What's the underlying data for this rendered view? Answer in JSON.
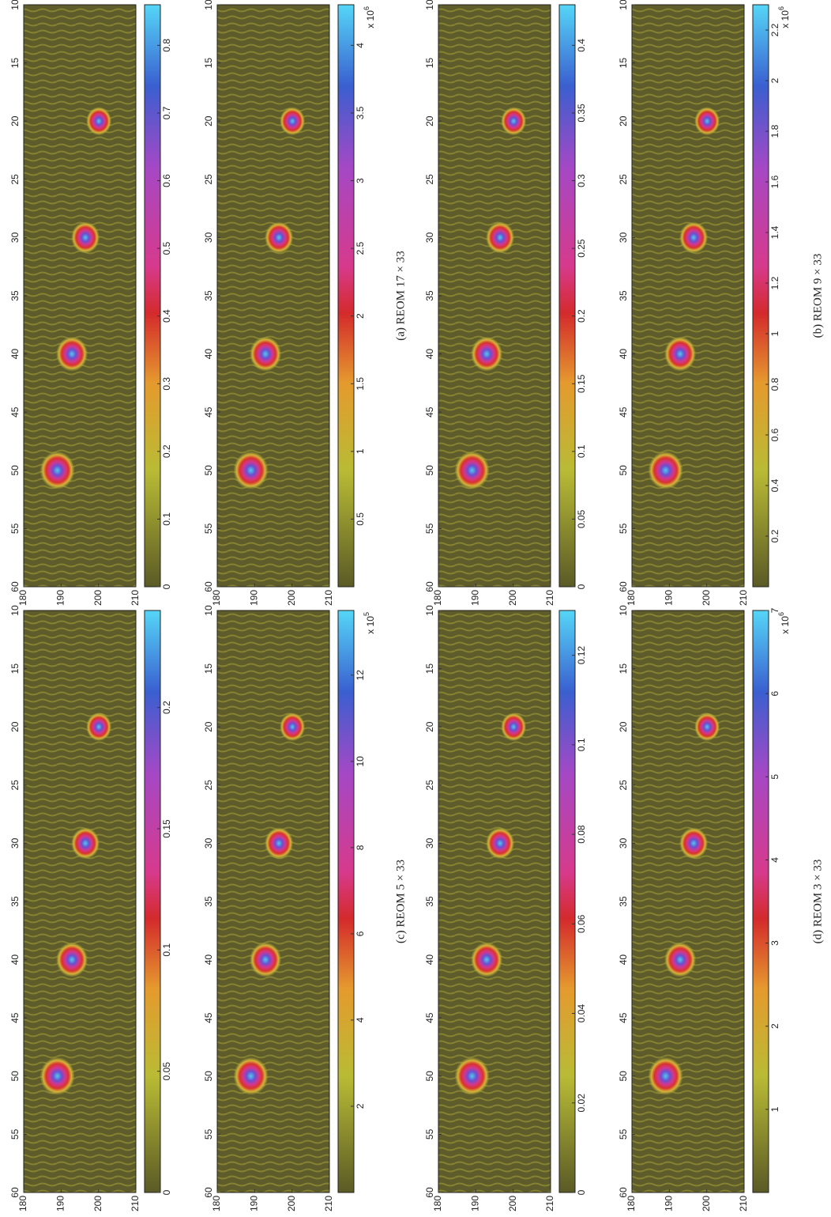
{
  "figure": {
    "panels": [
      {
        "xlim": [
          180,
          210
        ],
        "xticks": [
          180,
          190,
          200,
          210
        ],
        "ylim": [
          10,
          60
        ],
        "yticks": [
          10,
          15,
          20,
          25,
          30,
          35,
          40,
          45,
          50,
          55,
          60
        ],
        "colorbar": {
          "lim": [
            0,
            0.86
          ],
          "ticks": [
            0,
            0.1,
            0.2,
            0.3,
            0.4,
            0.5,
            0.6,
            0.7,
            0.8
          ]
        }
      },
      {
        "xlim": [
          180,
          210
        ],
        "xticks": [
          180,
          190,
          200,
          210
        ],
        "ylim": [
          10,
          60
        ],
        "yticks": [
          10,
          15,
          20,
          25,
          30,
          35,
          40,
          45,
          50,
          55,
          60
        ],
        "colorbar": {
          "lim": [
            0,
            4.3
          ],
          "ticks": [
            0.5,
            1,
            1.5,
            2,
            2.5,
            3,
            3.5,
            4
          ],
          "multiplier": "x 10",
          "exponent": "6"
        }
      },
      {
        "xlim": [
          180,
          210
        ],
        "xticks": [
          180,
          190,
          200,
          210
        ],
        "ylim": [
          10,
          60
        ],
        "yticks": [
          10,
          15,
          20,
          25,
          30,
          35,
          40,
          45,
          50,
          55,
          60
        ],
        "colorbar": {
          "lim": [
            0,
            0.43
          ],
          "ticks": [
            0,
            0.05,
            0.1,
            0.15,
            0.2,
            0.25,
            0.3,
            0.35,
            0.4
          ]
        }
      },
      {
        "xlim": [
          180,
          210
        ],
        "xticks": [
          180,
          190,
          200,
          210
        ],
        "ylim": [
          10,
          60
        ],
        "yticks": [
          10,
          15,
          20,
          25,
          30,
          35,
          40,
          45,
          50,
          55,
          60
        ],
        "colorbar": {
          "lim": [
            0,
            2.3
          ],
          "ticks": [
            0.2,
            0.4,
            0.6,
            0.8,
            1,
            1.2,
            1.4,
            1.6,
            1.8,
            2,
            2.2
          ],
          "multiplier": "x 10",
          "exponent": "6"
        }
      },
      {
        "xlim": [
          180,
          210
        ],
        "xticks": [
          180,
          190,
          200,
          210
        ],
        "ylim": [
          10,
          60
        ],
        "yticks": [
          10,
          15,
          20,
          25,
          30,
          35,
          40,
          45,
          50,
          55,
          60
        ],
        "colorbar": {
          "lim": [
            0,
            0.24
          ],
          "ticks": [
            0,
            0.05,
            0.1,
            0.15,
            0.2
          ]
        }
      },
      {
        "xlim": [
          180,
          210
        ],
        "xticks": [
          180,
          190,
          200,
          210
        ],
        "ylim": [
          10,
          60
        ],
        "yticks": [
          10,
          15,
          20,
          25,
          30,
          35,
          40,
          45,
          50,
          55,
          60
        ],
        "colorbar": {
          "lim": [
            0,
            13.5
          ],
          "ticks": [
            2,
            4,
            6,
            8,
            10,
            12
          ],
          "multiplier": "x 10",
          "exponent": "5"
        }
      },
      {
        "xlim": [
          180,
          210
        ],
        "xticks": [
          180,
          190,
          200,
          210
        ],
        "ylim": [
          10,
          60
        ],
        "yticks": [
          10,
          15,
          20,
          25,
          30,
          35,
          40,
          45,
          50,
          55,
          60
        ],
        "colorbar": {
          "lim": [
            0,
            0.13
          ],
          "ticks": [
            0,
            0.02,
            0.04,
            0.06,
            0.08,
            0.1,
            0.12
          ]
        }
      },
      {
        "xlim": [
          180,
          210
        ],
        "xticks": [
          180,
          190,
          200,
          210
        ],
        "ylim": [
          10,
          60
        ],
        "yticks": [
          10,
          15,
          20,
          25,
          30,
          35,
          40,
          45,
          50,
          55,
          60
        ],
        "colorbar": {
          "lim": [
            0,
            7
          ],
          "ticks": [
            1,
            2,
            3,
            4,
            5,
            6,
            7
          ],
          "multiplier": "x 10",
          "exponent": "6"
        }
      }
    ],
    "captions": [
      "(a)  REOM 17 × 33",
      "(b)  REOM 9 × 33",
      "(c)  REOM 5 × 33",
      "(d)  REOM 3 × 33"
    ]
  }
}
